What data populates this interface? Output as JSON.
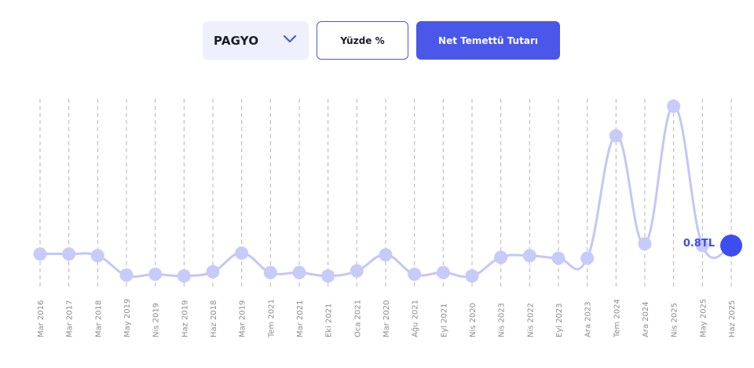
{
  "controls": {
    "ticker_select": "PAGYO",
    "percent_button": "Yüzde %",
    "net_dividend_button": "Net Temettü Tutarı"
  },
  "colors": {
    "accent": "#4a57e8",
    "line": "#c2c7f8",
    "point": "#c7cbfa",
    "highlight_point": "#3d4df2",
    "gridline": "#b5b5b5",
    "tick_label": "#8c8c8c"
  },
  "chart_data": {
    "type": "line",
    "categories": [
      "Mar 2016",
      "Mar 2017",
      "Mar 2018",
      "May 2019",
      "Nis 2019",
      "Haz 2019",
      "Haz 2018",
      "Mar 2019",
      "Tem 2021",
      "Mar 2021",
      "Eki 2021",
      "Oca 2021",
      "Mar 2020",
      "Ağu 2021",
      "Eyl 2021",
      "Nis 2020",
      "Nis 2023",
      "Nis 2022",
      "Eyl 2023",
      "Ara 2023",
      "Tem 2024",
      "Ara 2024",
      "Nis 2025",
      "May 2025",
      "Haz 2025"
    ],
    "values": [
      0.7,
      0.7,
      0.68,
      0.45,
      0.46,
      0.44,
      0.49,
      0.71,
      0.48,
      0.48,
      0.44,
      0.5,
      0.69,
      0.46,
      0.48,
      0.44,
      0.66,
      0.68,
      0.65,
      0.65,
      2.1,
      0.82,
      2.45,
      0.8,
      0.8
    ],
    "highlight": {
      "category": "Haz 2025",
      "label": "0.8TL"
    },
    "grid": "vertical-dashed",
    "legend": "none"
  }
}
